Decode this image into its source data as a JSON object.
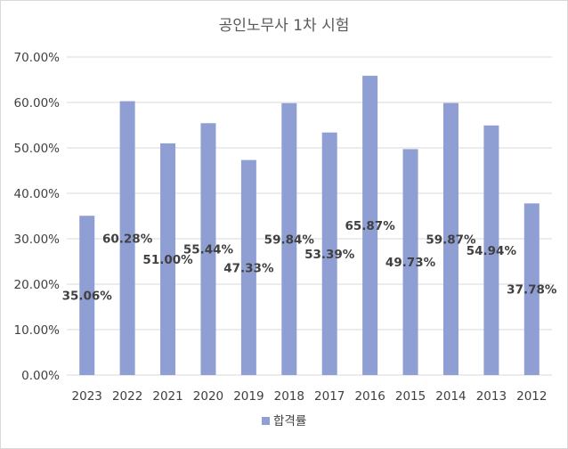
{
  "chart_data": {
    "type": "bar",
    "title": "공인노무사 1차 시험",
    "categories": [
      "2023",
      "2022",
      "2021",
      "2020",
      "2019",
      "2018",
      "2017",
      "2016",
      "2015",
      "2014",
      "2013",
      "2012"
    ],
    "series": [
      {
        "name": "합격률",
        "values": [
          35.06,
          60.28,
          51.0,
          55.44,
          47.33,
          59.84,
          53.39,
          65.87,
          49.73,
          59.87,
          54.94,
          37.78
        ],
        "labels": [
          "35.06%",
          "60.28%",
          "51.00%",
          "55.44%",
          "47.33%",
          "59.84%",
          "53.39%",
          "65.87%",
          "49.73%",
          "59.87%",
          "54.94%",
          "37.78%"
        ]
      }
    ],
    "y_ticks": [
      "0.00%",
      "10.00%",
      "20.00%",
      "30.00%",
      "40.00%",
      "50.00%",
      "60.00%",
      "70.00%"
    ],
    "ylim": [
      0,
      70
    ],
    "grid": true,
    "legend_position": "bottom",
    "colors": {
      "bar": "#8f9fd3",
      "grid": "#d9d9d9",
      "text": "#404040"
    }
  }
}
